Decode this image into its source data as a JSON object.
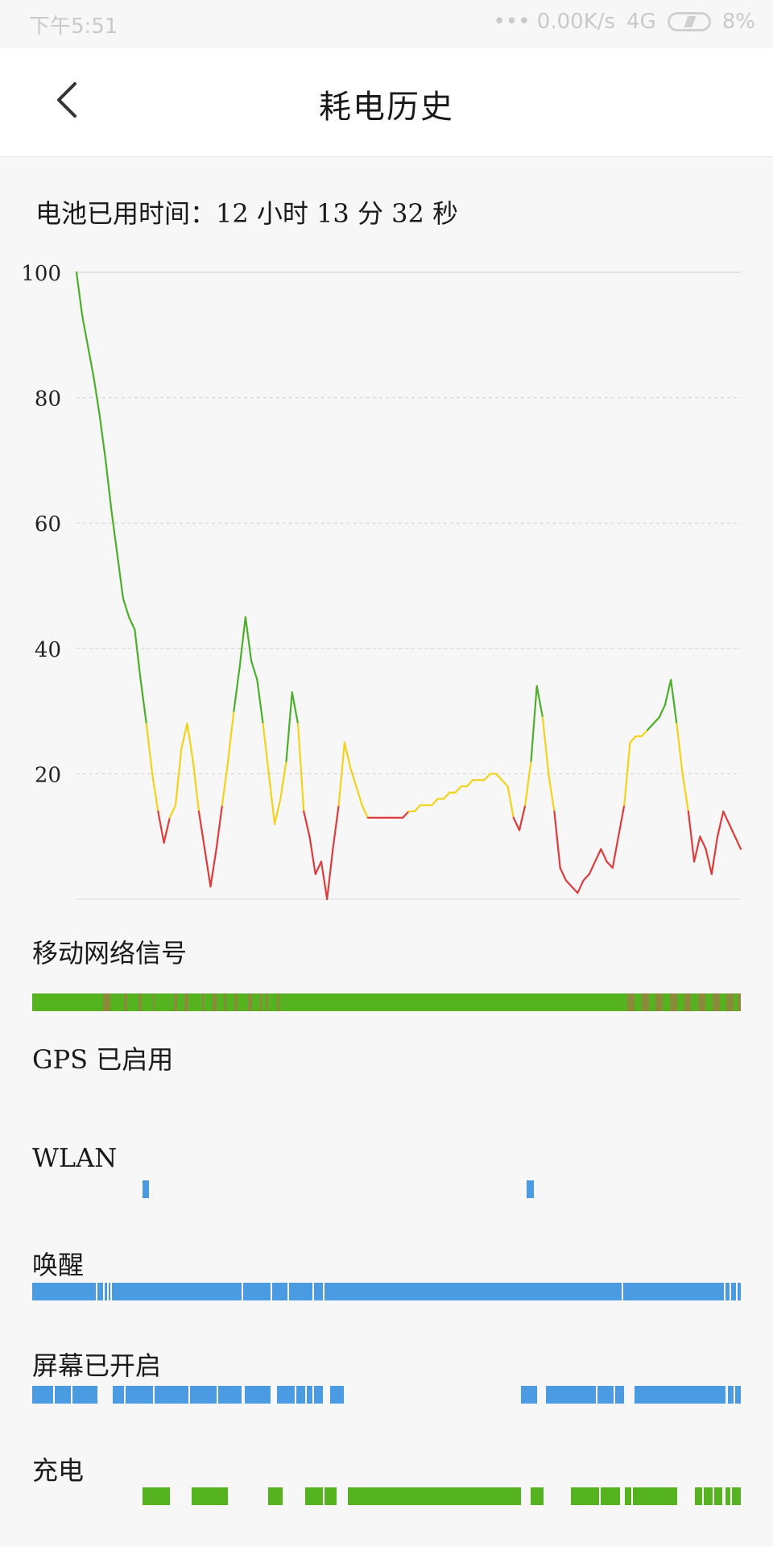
{
  "status_bar": {
    "time": "下午5:51",
    "network_speed": "0.00K/s",
    "signal": "4G",
    "battery": "8%"
  },
  "header": {
    "title": "耗电历史"
  },
  "usage": {
    "text": "电池已用时间：12 小时 13 分 32 秒"
  },
  "chart_data": {
    "type": "line",
    "ylim": [
      0,
      100
    ],
    "y_ticks": [
      "100",
      "80",
      "60",
      "40",
      "20"
    ],
    "grid": true,
    "series": [
      {
        "values": [
          100,
          93,
          88,
          83,
          77,
          70,
          62,
          55,
          48,
          45,
          43,
          35,
          28,
          20,
          14,
          9,
          13,
          15,
          24,
          28,
          22,
          14,
          8,
          2,
          8,
          15,
          22,
          30,
          37,
          45,
          38,
          35,
          28,
          20,
          12,
          16,
          22,
          33,
          28,
          14,
          10,
          4,
          6,
          0,
          8,
          15,
          25,
          21,
          18,
          15,
          13,
          13,
          13,
          13,
          13,
          13,
          13,
          14,
          14,
          15,
          15,
          15,
          16,
          16,
          17,
          17,
          18,
          18,
          19,
          19,
          19,
          20,
          20,
          19,
          18,
          13,
          11,
          15,
          22,
          34,
          29,
          20,
          14,
          5,
          3,
          2,
          1,
          3,
          4,
          6,
          8,
          6,
          5,
          10,
          15,
          25,
          26,
          26,
          27,
          28,
          29,
          31,
          35,
          28,
          20,
          14,
          6,
          10,
          8,
          4,
          10,
          14,
          12,
          10,
          8
        ]
      }
    ]
  },
  "sections": [
    {
      "label": "移动网络信号",
      "color": "#55b31f",
      "segments": [
        [
          0,
          100
        ]
      ],
      "dark_segments": [
        [
          10,
          11
        ],
        [
          13,
          13.4
        ],
        [
          15,
          15.4
        ],
        [
          17,
          17.3
        ],
        [
          20,
          20.5
        ],
        [
          21.5,
          22
        ],
        [
          24,
          24.3
        ],
        [
          25.5,
          26
        ],
        [
          27,
          27.4
        ],
        [
          28.5,
          29
        ],
        [
          30.5,
          31
        ],
        [
          32,
          32.4
        ],
        [
          33,
          33.3
        ],
        [
          34.5,
          34.9
        ],
        [
          84,
          85
        ],
        [
          86,
          87
        ],
        [
          88,
          89
        ],
        [
          90,
          91
        ],
        [
          92,
          93
        ],
        [
          94,
          95
        ],
        [
          96,
          97
        ],
        [
          98,
          99
        ],
        [
          99.5,
          100
        ]
      ]
    },
    {
      "label": "GPS 已启用",
      "color": "#4a9be2",
      "segments": []
    },
    {
      "label": "WLAN",
      "color": "#4a9be2",
      "segments": [
        [
          15.6,
          16.5
        ],
        [
          69.8,
          70.8
        ]
      ]
    },
    {
      "label": "唤醒",
      "color": "#4a9be2",
      "segments": [
        [
          0,
          100
        ]
      ],
      "gaps": [
        9,
        10,
        10.6,
        11,
        29.5,
        33.6,
        36,
        39.5,
        41,
        83.2,
        97.6,
        98.4,
        99.3
      ]
    },
    {
      "label": "屏幕已开启",
      "color": "#4a9be2",
      "segments": [
        [
          0,
          9.2
        ],
        [
          11.4,
          29.5
        ],
        [
          30,
          33.6
        ],
        [
          34.5,
          41
        ],
        [
          42,
          44
        ],
        [
          69,
          71.2
        ],
        [
          72.5,
          83.5
        ],
        [
          85,
          97.8
        ],
        [
          98.2,
          100
        ]
      ],
      "gaps": [
        3,
        5.5,
        13,
        17,
        22,
        26,
        37,
        38.5,
        39.5,
        79.5,
        82,
        99
      ]
    },
    {
      "label": "充电",
      "color": "#55b31f",
      "segments": [
        [
          15.6,
          19.4
        ],
        [
          22.5,
          27.6
        ],
        [
          33.3,
          35.3
        ],
        [
          38.5,
          43
        ],
        [
          44.5,
          69
        ],
        [
          70.3,
          72.2
        ],
        [
          76,
          83
        ],
        [
          83.6,
          91
        ],
        [
          93.5,
          97.4
        ],
        [
          97.8,
          100
        ]
      ],
      "gaps": [
        41,
        80,
        84.5,
        94.5,
        96,
        98.5
      ]
    }
  ]
}
